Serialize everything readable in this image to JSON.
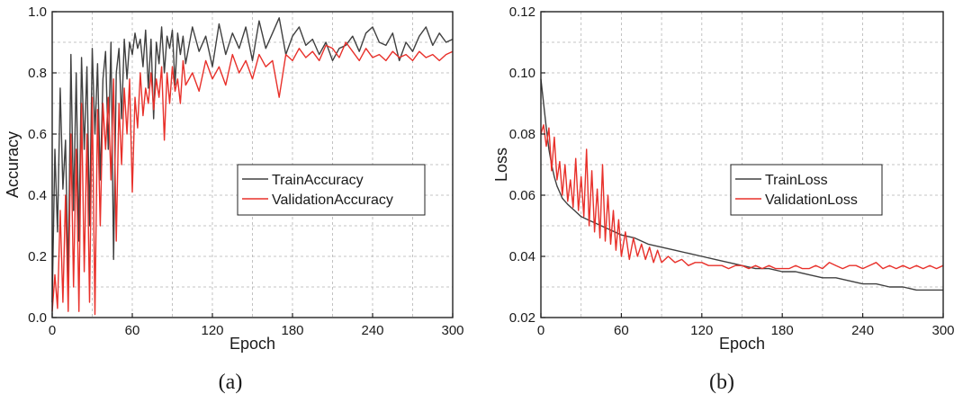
{
  "chart_data": [
    {
      "type": "line",
      "panel_label": "(a)",
      "xlabel": "Epoch",
      "ylabel": "Accuracy",
      "xlim": [
        0,
        300
      ],
      "ylim": [
        0.0,
        1.0
      ],
      "xticks": [
        "0",
        "60",
        "120",
        "180",
        "240",
        "300"
      ],
      "yticks": [
        "0.0",
        "0.2",
        "0.4",
        "0.6",
        "0.8",
        "1.0"
      ],
      "grid": true,
      "legend_position": "center-right",
      "series": [
        {
          "name": "TrainAccuracy",
          "color": "#404040",
          "x": [
            0,
            2,
            4,
            6,
            8,
            10,
            12,
            14,
            16,
            18,
            20,
            22,
            24,
            26,
            28,
            30,
            32,
            34,
            36,
            38,
            40,
            42,
            44,
            46,
            48,
            50,
            52,
            54,
            56,
            58,
            60,
            62,
            64,
            66,
            68,
            70,
            72,
            74,
            76,
            78,
            80,
            82,
            84,
            86,
            88,
            90,
            92,
            94,
            96,
            98,
            100,
            105,
            110,
            115,
            120,
            125,
            130,
            135,
            140,
            145,
            150,
            155,
            160,
            165,
            170,
            175,
            180,
            185,
            190,
            195,
            200,
            205,
            210,
            215,
            220,
            225,
            230,
            235,
            240,
            245,
            250,
            255,
            260,
            265,
            270,
            275,
            280,
            285,
            290,
            295,
            300
          ],
          "y": [
            0.05,
            0.55,
            0.28,
            0.75,
            0.42,
            0.58,
            0.12,
            0.86,
            0.35,
            0.8,
            0.25,
            0.85,
            0.55,
            0.82,
            0.3,
            0.88,
            0.6,
            0.83,
            0.45,
            0.78,
            0.87,
            0.55,
            0.9,
            0.19,
            0.8,
            0.88,
            0.65,
            0.91,
            0.78,
            0.9,
            0.86,
            0.93,
            0.88,
            0.91,
            0.82,
            0.94,
            0.75,
            0.91,
            0.65,
            0.9,
            0.83,
            0.95,
            0.8,
            0.92,
            0.88,
            0.94,
            0.76,
            0.93,
            0.86,
            0.92,
            0.83,
            0.95,
            0.87,
            0.92,
            0.82,
            0.96,
            0.86,
            0.93,
            0.88,
            0.95,
            0.84,
            0.97,
            0.88,
            0.93,
            0.98,
            0.86,
            0.92,
            0.95,
            0.89,
            0.91,
            0.86,
            0.9,
            0.84,
            0.88,
            0.89,
            0.92,
            0.87,
            0.93,
            0.95,
            0.9,
            0.89,
            0.93,
            0.84,
            0.9,
            0.87,
            0.92,
            0.95,
            0.89,
            0.93,
            0.9,
            0.91
          ]
        },
        {
          "name": "ValidationAccuracy",
          "color": "#e8302a",
          "x": [
            0,
            2,
            4,
            6,
            8,
            10,
            12,
            14,
            16,
            18,
            20,
            22,
            24,
            26,
            28,
            30,
            32,
            34,
            36,
            38,
            40,
            42,
            44,
            46,
            48,
            50,
            52,
            54,
            56,
            58,
            60,
            62,
            64,
            66,
            68,
            70,
            72,
            74,
            76,
            78,
            80,
            82,
            84,
            86,
            88,
            90,
            92,
            94,
            96,
            98,
            100,
            105,
            110,
            115,
            120,
            125,
            130,
            135,
            140,
            145,
            150,
            155,
            160,
            165,
            170,
            175,
            180,
            185,
            190,
            195,
            200,
            205,
            210,
            215,
            220,
            225,
            230,
            235,
            240,
            245,
            250,
            255,
            260,
            265,
            270,
            275,
            280,
            285,
            290,
            295,
            300
          ],
          "y": [
            0.02,
            0.14,
            0.03,
            0.35,
            0.05,
            0.4,
            0.02,
            0.6,
            0.1,
            0.55,
            0.02,
            0.7,
            0.15,
            0.6,
            0.05,
            0.72,
            0.01,
            0.68,
            0.3,
            0.7,
            0.55,
            0.72,
            0.45,
            0.78,
            0.25,
            0.7,
            0.5,
            0.75,
            0.6,
            0.78,
            0.41,
            0.72,
            0.62,
            0.8,
            0.66,
            0.75,
            0.7,
            0.8,
            0.68,
            0.78,
            0.72,
            0.82,
            0.58,
            0.8,
            0.7,
            0.82,
            0.74,
            0.78,
            0.7,
            0.84,
            0.76,
            0.8,
            0.74,
            0.84,
            0.78,
            0.82,
            0.76,
            0.86,
            0.8,
            0.84,
            0.78,
            0.86,
            0.82,
            0.84,
            0.72,
            0.86,
            0.84,
            0.88,
            0.85,
            0.87,
            0.84,
            0.89,
            0.88,
            0.85,
            0.9,
            0.87,
            0.84,
            0.88,
            0.85,
            0.86,
            0.84,
            0.87,
            0.85,
            0.86,
            0.84,
            0.87,
            0.85,
            0.86,
            0.84,
            0.86,
            0.87
          ]
        }
      ]
    },
    {
      "type": "line",
      "panel_label": "(b)",
      "xlabel": "Epoch",
      "ylabel": "Loss",
      "xlim": [
        0,
        300
      ],
      "ylim": [
        0.02,
        0.12
      ],
      "xticks": [
        "0",
        "60",
        "120",
        "180",
        "240",
        "300"
      ],
      "yticks": [
        "0.02",
        "0.04",
        "0.06",
        "0.08",
        "0.10",
        "0.12"
      ],
      "grid": true,
      "legend_position": "center-right",
      "series": [
        {
          "name": "TrainLoss",
          "color": "#404040",
          "x": [
            0,
            2,
            4,
            6,
            8,
            10,
            12,
            14,
            16,
            18,
            20,
            25,
            30,
            35,
            40,
            45,
            50,
            55,
            60,
            70,
            80,
            90,
            100,
            110,
            120,
            130,
            140,
            150,
            160,
            170,
            180,
            190,
            200,
            210,
            220,
            230,
            240,
            250,
            260,
            270,
            280,
            290,
            300
          ],
          "y": [
            0.098,
            0.09,
            0.082,
            0.075,
            0.07,
            0.066,
            0.063,
            0.061,
            0.059,
            0.058,
            0.057,
            0.055,
            0.053,
            0.052,
            0.051,
            0.05,
            0.049,
            0.048,
            0.047,
            0.046,
            0.044,
            0.043,
            0.042,
            0.041,
            0.04,
            0.039,
            0.038,
            0.037,
            0.036,
            0.036,
            0.035,
            0.035,
            0.034,
            0.033,
            0.033,
            0.032,
            0.031,
            0.031,
            0.03,
            0.03,
            0.029,
            0.029,
            0.029
          ]
        },
        {
          "name": "ValidationLoss",
          "color": "#e8302a",
          "x": [
            0,
            2,
            4,
            6,
            8,
            10,
            12,
            14,
            16,
            18,
            20,
            22,
            24,
            26,
            28,
            30,
            32,
            34,
            36,
            38,
            40,
            42,
            44,
            46,
            48,
            50,
            52,
            54,
            56,
            58,
            60,
            63,
            66,
            69,
            72,
            75,
            78,
            81,
            84,
            87,
            90,
            95,
            100,
            105,
            110,
            115,
            120,
            125,
            130,
            135,
            140,
            145,
            150,
            155,
            160,
            165,
            170,
            175,
            180,
            185,
            190,
            195,
            200,
            205,
            210,
            215,
            220,
            225,
            230,
            235,
            240,
            245,
            250,
            255,
            260,
            265,
            270,
            275,
            280,
            285,
            290,
            295,
            300
          ],
          "y": [
            0.08,
            0.083,
            0.076,
            0.082,
            0.068,
            0.079,
            0.065,
            0.071,
            0.06,
            0.07,
            0.058,
            0.065,
            0.056,
            0.072,
            0.055,
            0.066,
            0.053,
            0.075,
            0.05,
            0.068,
            0.048,
            0.062,
            0.046,
            0.07,
            0.045,
            0.06,
            0.044,
            0.055,
            0.042,
            0.052,
            0.04,
            0.048,
            0.039,
            0.046,
            0.04,
            0.044,
            0.039,
            0.043,
            0.038,
            0.042,
            0.038,
            0.04,
            0.038,
            0.039,
            0.037,
            0.038,
            0.038,
            0.037,
            0.037,
            0.037,
            0.036,
            0.037,
            0.037,
            0.036,
            0.037,
            0.036,
            0.037,
            0.036,
            0.036,
            0.036,
            0.037,
            0.036,
            0.036,
            0.037,
            0.036,
            0.038,
            0.037,
            0.036,
            0.037,
            0.037,
            0.036,
            0.037,
            0.038,
            0.036,
            0.037,
            0.036,
            0.037,
            0.036,
            0.037,
            0.036,
            0.037,
            0.036,
            0.037
          ]
        }
      ]
    }
  ]
}
